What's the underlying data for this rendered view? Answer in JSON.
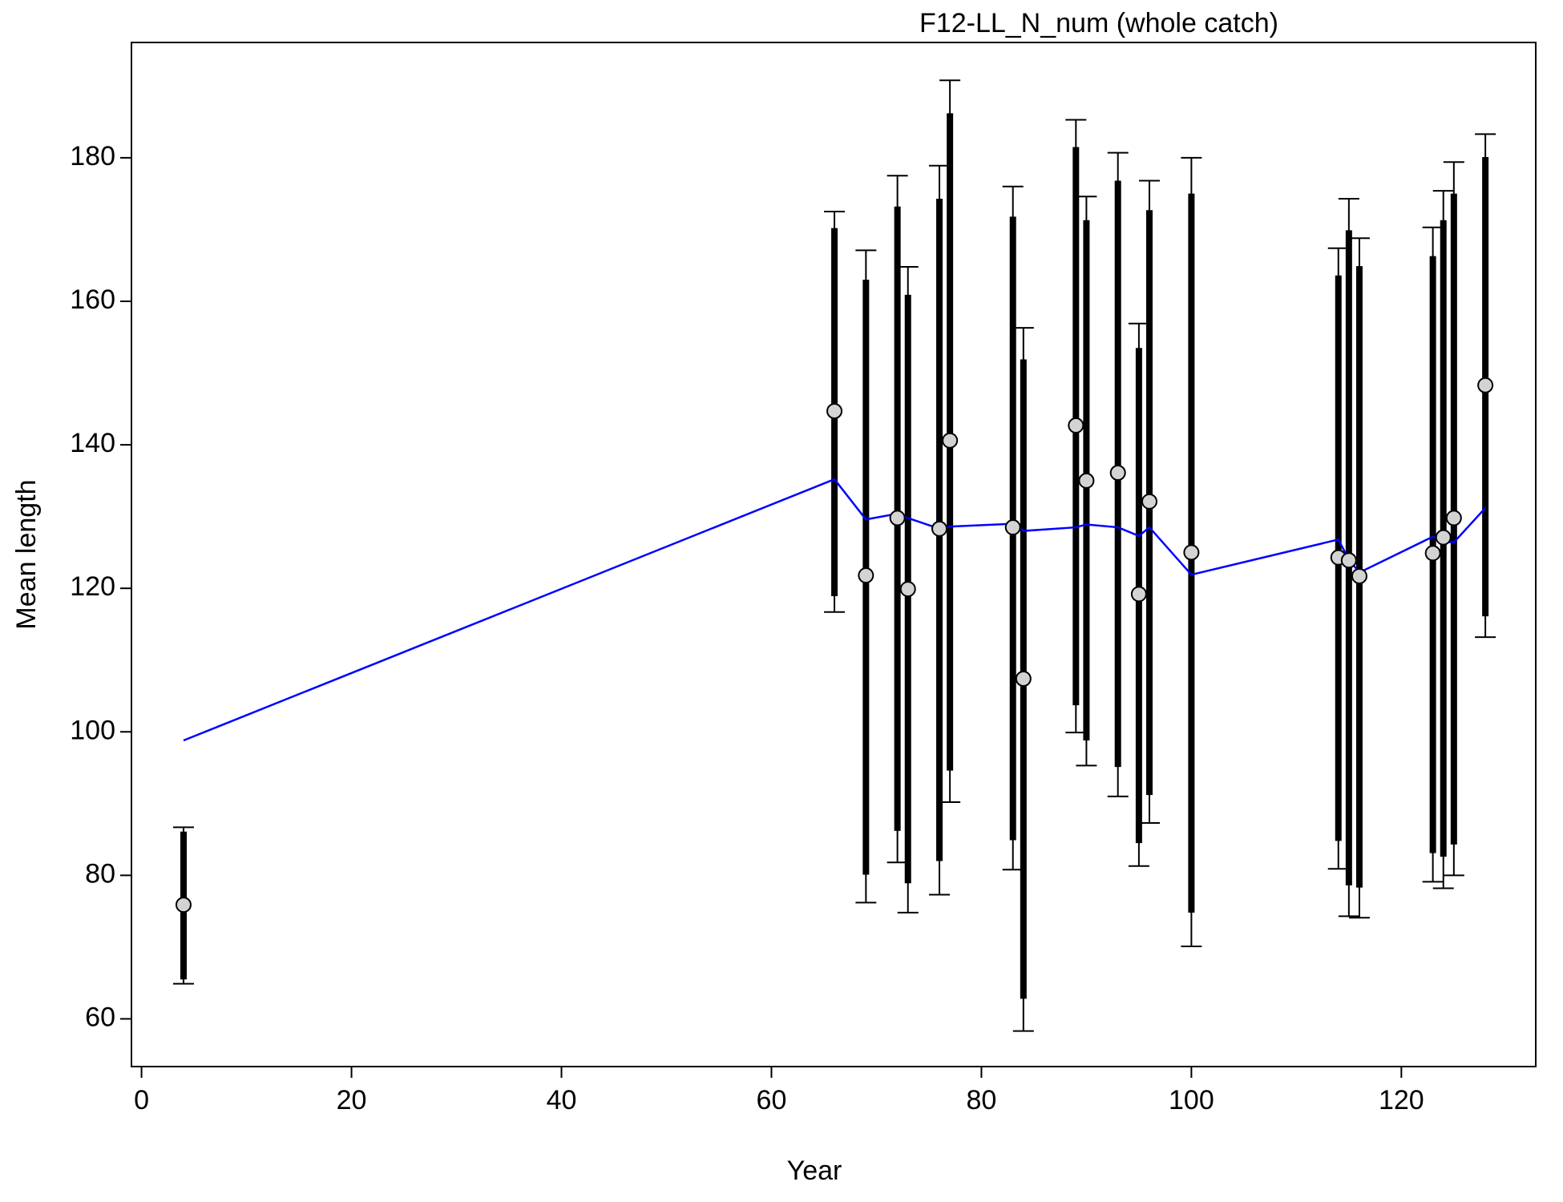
{
  "chart_data": {
    "type": "errorbar",
    "title": "F12-LL_N_num (whole catch)",
    "xlabel": "Year",
    "ylabel": "Mean length",
    "x": [
      4,
      66,
      69,
      72,
      73,
      76,
      77,
      83,
      84,
      89,
      90,
      93,
      95,
      96,
      100,
      114,
      115,
      116,
      123,
      124,
      125,
      128
    ],
    "values": [
      75.9,
      144.7,
      121.8,
      129.8,
      119.9,
      128.3,
      140.6,
      128.5,
      107.4,
      142.7,
      135.0,
      136.1,
      119.2,
      132.1,
      125.0,
      124.3,
      123.9,
      121.7,
      124.9,
      127.1,
      129.8,
      148.3
    ],
    "expected": [
      98.8,
      135.2,
      129.6,
      130.4,
      129.8,
      128.3,
      128.6,
      129.0,
      128.0,
      128.5,
      128.9,
      128.5,
      127.3,
      128.5,
      121.9,
      126.8,
      124.0,
      122.2,
      127.2,
      126.5,
      126.4,
      131.2
    ],
    "inner_low": [
      65.5,
      118.9,
      80.1,
      86.2,
      78.9,
      82.0,
      94.6,
      84.9,
      62.8,
      103.7,
      98.8,
      95.1,
      84.5,
      91.2,
      74.8,
      84.8,
      78.6,
      78.3,
      83.1,
      82.6,
      84.3,
      116.1
    ],
    "inner_high": [
      86.1,
      170.2,
      163.0,
      173.2,
      160.9,
      174.3,
      186.2,
      171.8,
      151.9,
      181.5,
      171.3,
      176.8,
      153.5,
      172.7,
      175.0,
      163.6,
      169.9,
      164.9,
      166.3,
      171.3,
      175.0,
      180.1
    ],
    "outer_low": [
      64.9,
      116.7,
      76.2,
      81.8,
      74.8,
      77.3,
      90.2,
      80.8,
      58.3,
      99.9,
      95.3,
      91.0,
      81.3,
      87.3,
      70.1,
      80.9,
      74.3,
      74.1,
      79.1,
      78.2,
      80.0,
      113.2
    ],
    "outer_high": [
      86.7,
      172.5,
      167.1,
      177.5,
      164.8,
      178.9,
      190.8,
      176.0,
      156.3,
      185.3,
      174.6,
      180.7,
      156.9,
      176.8,
      180.0,
      167.4,
      174.3,
      168.8,
      170.3,
      175.4,
      179.4,
      183.3
    ],
    "point_color": "#d3d3d3",
    "line_color": "#0000ff",
    "bar_color": "#000000",
    "xlim": [
      -0.96,
      132.8
    ],
    "ylim": [
      53.35,
      196.07
    ],
    "xticks": [
      0,
      20,
      40,
      60,
      80,
      100,
      120
    ],
    "yticks": [
      60,
      80,
      100,
      120,
      140,
      160,
      180
    ]
  }
}
